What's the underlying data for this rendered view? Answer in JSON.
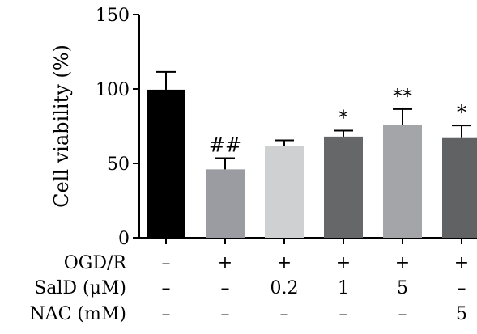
{
  "chart_data": {
    "type": "bar",
    "title": "",
    "xlabel": "",
    "ylabel": "Cell viability (%)",
    "ylim": [
      0,
      150
    ],
    "yticks": [
      "0",
      "50",
      "100",
      "150"
    ],
    "values": [
      99.5,
      46.0,
      61.5,
      68.0,
      76.0,
      67.0
    ],
    "errors": [
      12.0,
      7.5,
      4.0,
      4.0,
      10.5,
      8.5
    ],
    "bar_colors": [
      "#000000",
      "#9b9ca1",
      "#cfd0d2",
      "#666769",
      "#a4a5a9",
      "#616264"
    ],
    "significance": [
      "",
      "##",
      "",
      "*",
      "**",
      "*"
    ],
    "conditions": [
      {
        "label": "OGD/R",
        "values": [
          "–",
          "+",
          "+",
          "+",
          "+",
          "+"
        ]
      },
      {
        "label": "SalD (μM)",
        "values": [
          "–",
          "–",
          "0.2",
          "1",
          "5",
          "–"
        ]
      },
      {
        "label": "NAC (mM)",
        "values": [
          "–",
          "–",
          "–",
          "–",
          "–",
          "5"
        ]
      }
    ]
  }
}
